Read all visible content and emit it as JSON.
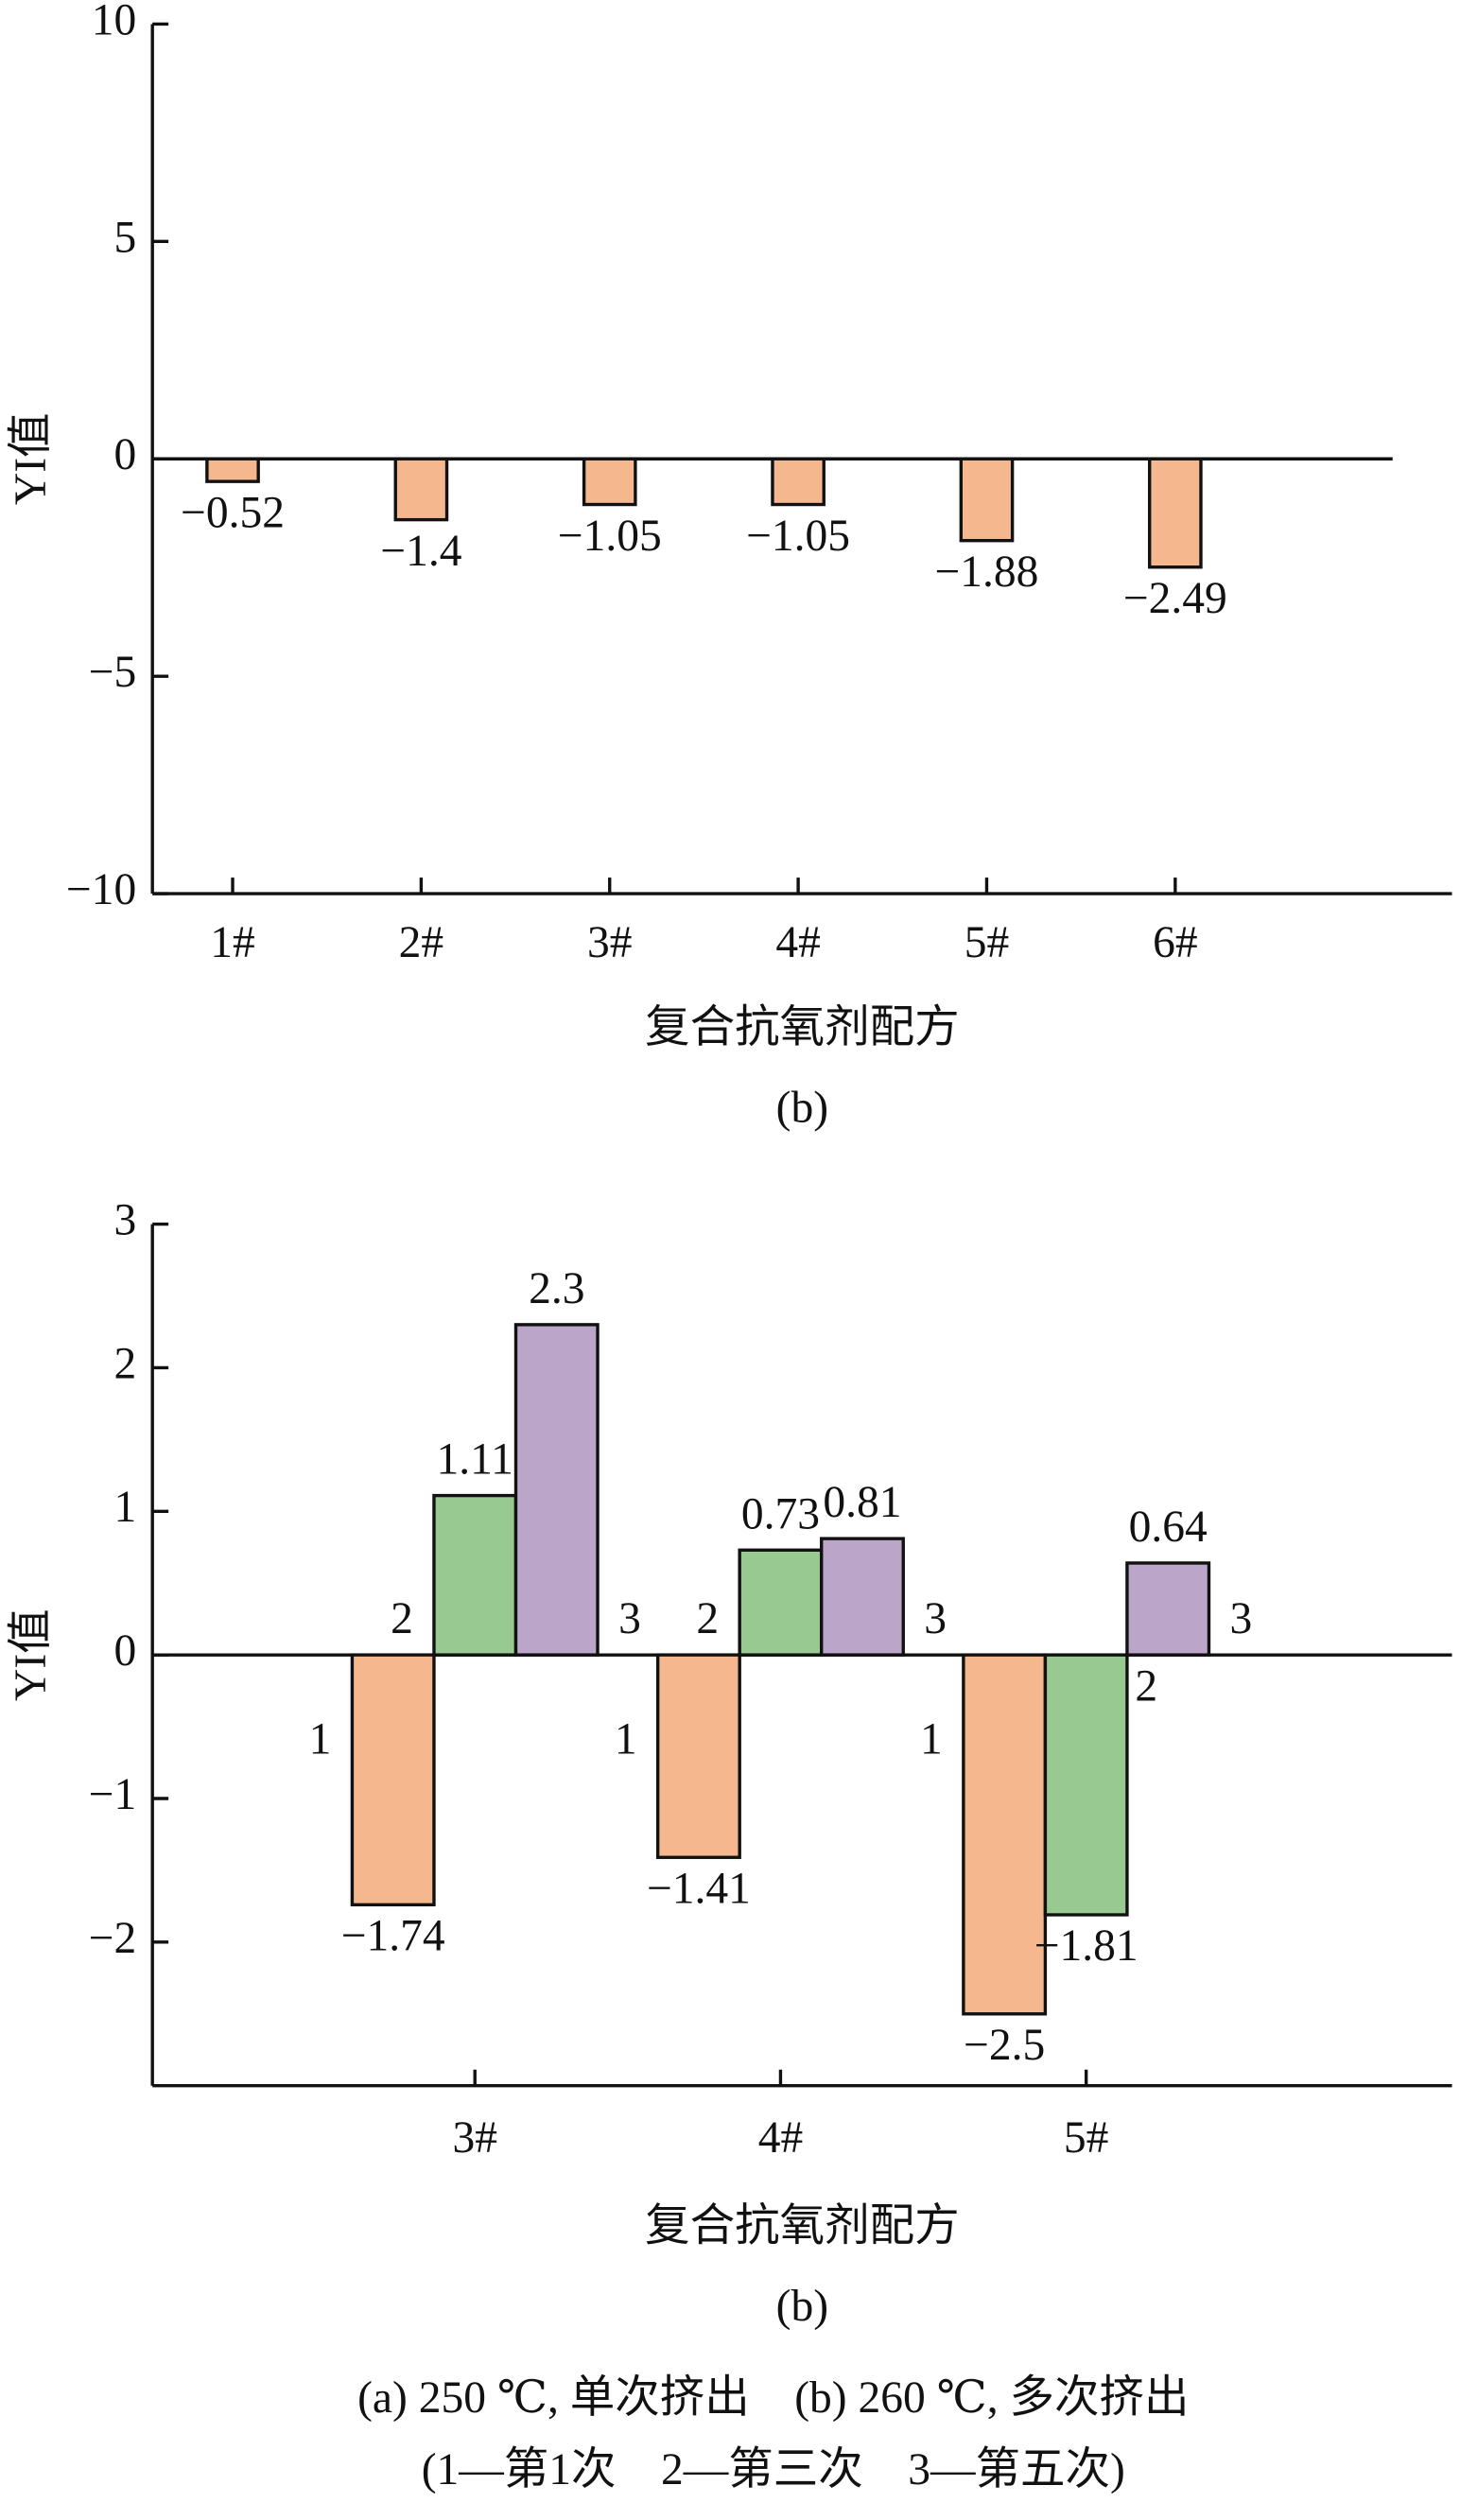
{
  "chart_data": [
    {
      "type": "bar",
      "y_label": "YI值",
      "x_label": "复合抗氧剂配方",
      "subtitle": "(b)",
      "categories": [
        "1#",
        "2#",
        "3#",
        "4#",
        "5#",
        "6#"
      ],
      "values": [
        -0.52,
        -1.4,
        -1.05,
        -1.05,
        -1.88,
        -2.49
      ],
      "value_labels": [
        "−0.52",
        "−1.4",
        "−1.05",
        "−1.05",
        "−1.88",
        "−2.49"
      ],
      "color": "#f5b88e",
      "ylim": [
        -10,
        10
      ],
      "yticks": [
        {
          "value": -10,
          "label": "−10"
        },
        {
          "value": -5,
          "label": "−5"
        },
        0,
        5,
        10
      ]
    },
    {
      "type": "grouped_bar",
      "y_label": "YI值",
      "x_label": "复合抗氧剂配方",
      "subtitle": "(b)",
      "categories": [
        "3#",
        "4#",
        "5#"
      ],
      "series": [
        {
          "name": "1",
          "color": "#f5b88e",
          "values": [
            -1.74,
            -1.41,
            -2.5
          ],
          "value_labels": [
            "−1.74",
            "−1.41",
            "−2.5"
          ]
        },
        {
          "name": "2",
          "color": "#98c990",
          "values": [
            1.11,
            0.73,
            -1.81
          ],
          "value_labels": [
            "1.11",
            "0.73",
            "−1.81"
          ]
        },
        {
          "name": "3",
          "color": "#bba6c9",
          "values": [
            2.3,
            0.81,
            0.64
          ],
          "value_labels": [
            "2.3",
            "0.81",
            "0.64"
          ]
        }
      ],
      "ylim": [
        -3,
        3
      ],
      "yticks": [
        {
          "value": -2,
          "label": "−2"
        },
        {
          "value": -1,
          "label": "−1"
        },
        0,
        1,
        2,
        3
      ]
    }
  ],
  "caption": [
    "(a) 250 ℃, 单次挤出　(b) 260 ℃, 多次挤出",
    "(1—第1次　2—第三次　3—第五次)"
  ]
}
